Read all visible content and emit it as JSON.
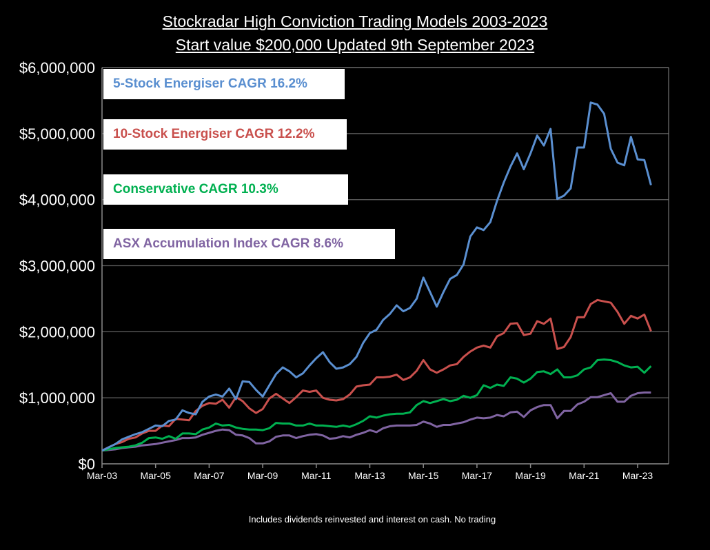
{
  "chart_data": {
    "type": "line",
    "title": "Stockradar High Conviction Trading Models  2003-2023",
    "subtitle": "Start value $200,000   Updated 9th September 2023",
    "footnote": "Includes dividends reinvested and interest on cash. No trading",
    "ylim": [
      0,
      6000000
    ],
    "grid": true,
    "y_ticks": [
      0,
      1000000,
      2000000,
      3000000,
      4000000,
      5000000,
      6000000
    ],
    "y_tick_labels": [
      "$0",
      "$1,000,000",
      "$2,000,000",
      "$3,000,000",
      "$4,000,000",
      "$5,000,000",
      "$6,000,000"
    ],
    "x_tick_labels": [
      "Mar-03",
      "Mar-05",
      "Mar-07",
      "Mar-09",
      "Mar-11",
      "Mar-13",
      "Mar-15",
      "Mar-17",
      "Mar-19",
      "Mar-21",
      "Mar-23"
    ],
    "x": [
      "Mar-03",
      "Jun-03",
      "Sep-03",
      "Dec-03",
      "Mar-04",
      "Jun-04",
      "Sep-04",
      "Dec-04",
      "Mar-05",
      "Jun-05",
      "Sep-05",
      "Dec-05",
      "Mar-06",
      "Jun-06",
      "Sep-06",
      "Dec-06",
      "Mar-07",
      "Jun-07",
      "Sep-07",
      "Dec-07",
      "Mar-08",
      "Jun-08",
      "Sep-08",
      "Dec-08",
      "Mar-09",
      "Jun-09",
      "Sep-09",
      "Dec-09",
      "Mar-10",
      "Jun-10",
      "Sep-10",
      "Dec-10",
      "Mar-11",
      "Jun-11",
      "Sep-11",
      "Dec-11",
      "Mar-12",
      "Jun-12",
      "Sep-12",
      "Dec-12",
      "Mar-13",
      "Jun-13",
      "Sep-13",
      "Dec-13",
      "Mar-14",
      "Jun-14",
      "Sep-14",
      "Dec-14",
      "Mar-15",
      "Jun-15",
      "Sep-15",
      "Dec-15",
      "Mar-16",
      "Jun-16",
      "Sep-16",
      "Dec-16",
      "Mar-17",
      "Jun-17",
      "Sep-17",
      "Dec-17",
      "Mar-18",
      "Jun-18",
      "Sep-18",
      "Dec-18",
      "Mar-19",
      "Jun-19",
      "Sep-19",
      "Dec-19",
      "Mar-20",
      "Jun-20",
      "Sep-20",
      "Dec-20",
      "Mar-21",
      "Jun-21",
      "Sep-21",
      "Dec-21",
      "Mar-22",
      "Jun-22",
      "Sep-22",
      "Dec-22",
      "Mar-23",
      "Jun-23",
      "Sep-23"
    ],
    "legend_placement": "top-left",
    "series": [
      {
        "name": "5-Stock Energiser CAGR 16.2%",
        "color": "#5a8fd0",
        "values_millions": [
          0.2,
          0.25,
          0.3,
          0.37,
          0.41,
          0.45,
          0.48,
          0.53,
          0.58,
          0.57,
          0.65,
          0.67,
          0.81,
          0.77,
          0.75,
          0.94,
          1.02,
          1.05,
          1.02,
          1.14,
          0.98,
          1.25,
          1.24,
          1.12,
          1.02,
          1.19,
          1.36,
          1.46,
          1.4,
          1.31,
          1.37,
          1.49,
          1.6,
          1.69,
          1.54,
          1.44,
          1.46,
          1.51,
          1.62,
          1.83,
          1.98,
          2.03,
          2.18,
          2.27,
          2.4,
          2.31,
          2.36,
          2.5,
          2.82,
          2.6,
          2.38,
          2.6,
          2.8,
          2.86,
          3.02,
          3.44,
          3.58,
          3.54,
          3.66,
          3.98,
          4.26,
          4.5,
          4.7,
          4.46,
          4.7,
          4.97,
          4.82,
          5.07,
          4.01,
          4.06,
          4.17,
          4.79,
          4.79,
          5.47,
          5.44,
          5.3,
          4.77,
          4.56,
          4.52,
          4.95,
          4.61,
          4.6,
          4.22
        ]
      },
      {
        "name": "10-Stock Energiser CAGR 12.2%",
        "color": "#c9504d",
        "values_millions": [
          0.2,
          0.25,
          0.3,
          0.33,
          0.38,
          0.4,
          0.46,
          0.5,
          0.5,
          0.58,
          0.57,
          0.68,
          0.67,
          0.66,
          0.8,
          0.88,
          0.92,
          0.91,
          0.97,
          0.85,
          1.01,
          0.95,
          0.84,
          0.77,
          0.83,
          0.99,
          1.06,
          0.99,
          0.92,
          1.01,
          1.11,
          1.09,
          1.11,
          1.0,
          0.97,
          0.96,
          0.98,
          1.05,
          1.17,
          1.19,
          1.2,
          1.31,
          1.31,
          1.32,
          1.35,
          1.27,
          1.31,
          1.41,
          1.57,
          1.43,
          1.38,
          1.43,
          1.49,
          1.51,
          1.62,
          1.7,
          1.76,
          1.79,
          1.76,
          1.93,
          1.98,
          2.12,
          2.13,
          1.95,
          1.97,
          2.16,
          2.12,
          2.2,
          1.74,
          1.77,
          1.92,
          2.22,
          2.22,
          2.42,
          2.48,
          2.46,
          2.44,
          2.3,
          2.12,
          2.24,
          2.2,
          2.26,
          2.01
        ]
      },
      {
        "name": "Conservative CAGR 10.3%",
        "color": "#00b050",
        "values_millions": [
          0.2,
          0.22,
          0.24,
          0.25,
          0.26,
          0.28,
          0.32,
          0.39,
          0.4,
          0.38,
          0.42,
          0.38,
          0.46,
          0.46,
          0.45,
          0.52,
          0.55,
          0.61,
          0.58,
          0.59,
          0.55,
          0.53,
          0.52,
          0.52,
          0.51,
          0.54,
          0.62,
          0.61,
          0.61,
          0.58,
          0.58,
          0.61,
          0.58,
          0.58,
          0.57,
          0.56,
          0.58,
          0.56,
          0.6,
          0.65,
          0.72,
          0.7,
          0.73,
          0.75,
          0.76,
          0.76,
          0.78,
          0.89,
          0.95,
          0.92,
          0.95,
          0.98,
          0.95,
          0.97,
          1.03,
          1.0,
          1.04,
          1.19,
          1.15,
          1.2,
          1.18,
          1.31,
          1.29,
          1.23,
          1.29,
          1.39,
          1.4,
          1.36,
          1.43,
          1.31,
          1.31,
          1.34,
          1.43,
          1.46,
          1.57,
          1.58,
          1.57,
          1.54,
          1.49,
          1.46,
          1.47,
          1.38,
          1.48
        ]
      },
      {
        "name": "ASX Accumulation Index CAGR 8.6%",
        "color": "#8064a2",
        "values_millions": [
          0.2,
          0.21,
          0.22,
          0.24,
          0.25,
          0.26,
          0.28,
          0.29,
          0.3,
          0.32,
          0.34,
          0.36,
          0.39,
          0.39,
          0.4,
          0.44,
          0.47,
          0.5,
          0.52,
          0.51,
          0.44,
          0.43,
          0.39,
          0.31,
          0.31,
          0.34,
          0.41,
          0.43,
          0.43,
          0.39,
          0.42,
          0.44,
          0.45,
          0.43,
          0.38,
          0.39,
          0.42,
          0.4,
          0.44,
          0.47,
          0.51,
          0.48,
          0.54,
          0.57,
          0.58,
          0.58,
          0.58,
          0.59,
          0.64,
          0.61,
          0.56,
          0.59,
          0.59,
          0.61,
          0.63,
          0.67,
          0.7,
          0.69,
          0.7,
          0.74,
          0.72,
          0.78,
          0.79,
          0.71,
          0.81,
          0.86,
          0.89,
          0.89,
          0.69,
          0.8,
          0.8,
          0.9,
          0.94,
          1.01,
          1.01,
          1.04,
          1.07,
          0.94,
          0.94,
          1.03,
          1.07,
          1.08,
          1.08
        ]
      }
    ]
  }
}
